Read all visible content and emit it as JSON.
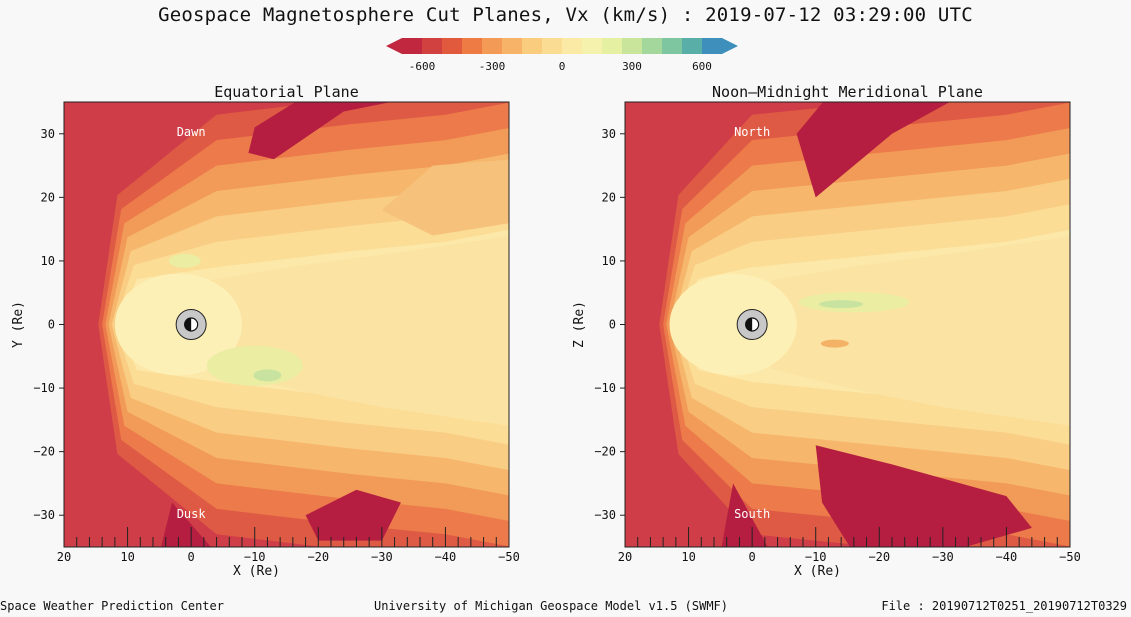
{
  "title": "Geospace Magnetosphere Cut Planes, Vx (km/s) : 2019-07-12 03:29:00 UTC",
  "colorbar": {
    "ticks": [
      "-600",
      "-300",
      "0",
      "300",
      "600"
    ],
    "colors": [
      "#c1273f",
      "#d0413f",
      "#e15a3e",
      "#ee7a44",
      "#f39a56",
      "#f7b468",
      "#f9cc7e",
      "#fbdc93",
      "#fbe9a6",
      "#f5f2ad",
      "#e5f0a2",
      "#c8e59b",
      "#a4d79b",
      "#7ec6a0",
      "#5aaea8",
      "#3f8fbd"
    ]
  },
  "chart_data": [
    {
      "type": "heatmap",
      "title": "Equatorial Plane",
      "xlabel": "X (Re)",
      "ylabel": "Y (Re)",
      "xlim": [
        20,
        -50
      ],
      "ylim": [
        -35,
        35
      ],
      "xticks": [
        "20",
        "10",
        "0",
        "−10",
        "−20",
        "−30",
        "−40",
        "−50"
      ],
      "yticks": [
        "30",
        "20",
        "10",
        "0",
        "−10",
        "−20",
        "−30"
      ],
      "annotations": {
        "top": "Dawn",
        "bottom": "Dusk"
      },
      "value_range": [
        -600,
        600
      ],
      "quantity": "Vx (km/s)"
    },
    {
      "type": "heatmap",
      "title": "Noon–Midnight Meridional Plane",
      "xlabel": "X (Re)",
      "ylabel": "Z (Re)",
      "xlim": [
        20,
        -50
      ],
      "ylim": [
        -35,
        35
      ],
      "xticks": [
        "20",
        "10",
        "0",
        "−10",
        "−20",
        "−30",
        "−40",
        "−50"
      ],
      "yticks": [
        "30",
        "20",
        "10",
        "0",
        "−10",
        "−20",
        "−30"
      ],
      "annotations": {
        "top": "North",
        "bottom": "South"
      },
      "value_range": [
        -600,
        600
      ],
      "quantity": "Vx (km/s)"
    }
  ],
  "footer": {
    "left": "Space Weather Prediction Center",
    "center": "University of Michigan Geospace Model v1.5 (SWMF)",
    "right": "File : 20190712T0251_20190712T0329"
  }
}
